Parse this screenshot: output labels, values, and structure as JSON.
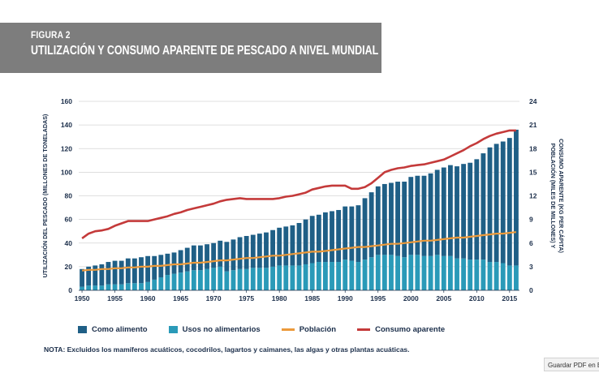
{
  "figure": {
    "number": "FIGURA 2",
    "title": "UTILIZACIÓN Y CONSUMO APARENTE DE PESCADO A NIVEL MUNDIAL"
  },
  "chart_data": {
    "type": "bar",
    "stacked": true,
    "x": [
      1950,
      1951,
      1952,
      1953,
      1954,
      1955,
      1956,
      1957,
      1958,
      1959,
      1960,
      1961,
      1962,
      1963,
      1964,
      1965,
      1966,
      1967,
      1968,
      1969,
      1970,
      1971,
      1972,
      1973,
      1974,
      1975,
      1976,
      1977,
      1978,
      1979,
      1980,
      1981,
      1982,
      1983,
      1984,
      1985,
      1986,
      1987,
      1988,
      1989,
      1990,
      1991,
      1992,
      1993,
      1994,
      1995,
      1996,
      1997,
      1998,
      1999,
      2000,
      2001,
      2002,
      2003,
      2004,
      2005,
      2006,
      2007,
      2008,
      2009,
      2010,
      2011,
      2012,
      2013,
      2014,
      2015,
      2016
    ],
    "series": [
      {
        "name": "Como alimento",
        "color": "#1f5f86",
        "axis": "left",
        "kind": "bar",
        "values": [
          15,
          16,
          17,
          18,
          19,
          20,
          20,
          21,
          21,
          22,
          22,
          20,
          19,
          18,
          18,
          19,
          20,
          21,
          21,
          21,
          21,
          22,
          25,
          26,
          27,
          28,
          28,
          29,
          30,
          31,
          32,
          33,
          34,
          36,
          38,
          40,
          40,
          42,
          43,
          44,
          45,
          46,
          48,
          52,
          55,
          58,
          60,
          61,
          63,
          64,
          66,
          67,
          68,
          70,
          72,
          75,
          77,
          78,
          80,
          82,
          85,
          90,
          97,
          100,
          103,
          108,
          115
        ]
      },
      {
        "name": "Usos no alimentarios",
        "color": "#2a9ab8",
        "axis": "left",
        "kind": "bar",
        "values": [
          3,
          4,
          4,
          4,
          5,
          5,
          5,
          6,
          6,
          6,
          7,
          9,
          11,
          13,
          14,
          15,
          16,
          17,
          17,
          18,
          19,
          20,
          16,
          17,
          18,
          18,
          19,
          19,
          19,
          20,
          21,
          21,
          21,
          21,
          22,
          23,
          24,
          24,
          24,
          24,
          26,
          25,
          24,
          26,
          28,
          30,
          30,
          30,
          29,
          28,
          30,
          30,
          29,
          29,
          30,
          29,
          29,
          27,
          27,
          26,
          26,
          26,
          24,
          24,
          23,
          21,
          21
        ]
      },
      {
        "name": "Población",
        "color": "#ec9a3b",
        "axis": "right",
        "kind": "line",
        "values": [
          2.5,
          2.6,
          2.6,
          2.7,
          2.7,
          2.8,
          2.8,
          2.9,
          2.9,
          3.0,
          3.0,
          3.1,
          3.1,
          3.2,
          3.3,
          3.3,
          3.4,
          3.5,
          3.5,
          3.6,
          3.7,
          3.8,
          3.8,
          3.9,
          4.0,
          4.1,
          4.1,
          4.2,
          4.3,
          4.4,
          4.4,
          4.5,
          4.6,
          4.7,
          4.8,
          4.9,
          4.9,
          5.0,
          5.1,
          5.2,
          5.3,
          5.4,
          5.5,
          5.5,
          5.6,
          5.7,
          5.8,
          5.9,
          5.9,
          6.0,
          6.1,
          6.2,
          6.3,
          6.3,
          6.4,
          6.5,
          6.6,
          6.7,
          6.7,
          6.8,
          6.9,
          7.0,
          7.1,
          7.2,
          7.2,
          7.3,
          7.4
        ]
      },
      {
        "name": "Consumo aparente",
        "color": "#c43a3a",
        "axis": "right",
        "kind": "line",
        "values": [
          6.6,
          7.2,
          7.5,
          7.6,
          7.8,
          8.2,
          8.5,
          8.8,
          8.8,
          8.8,
          8.8,
          9.0,
          9.2,
          9.4,
          9.7,
          9.9,
          10.2,
          10.4,
          10.6,
          10.8,
          11.0,
          11.3,
          11.5,
          11.6,
          11.7,
          11.6,
          11.6,
          11.6,
          11.6,
          11.6,
          11.7,
          11.9,
          12.0,
          12.2,
          12.4,
          12.8,
          13.0,
          13.2,
          13.3,
          13.3,
          13.3,
          12.9,
          12.9,
          13.1,
          13.6,
          14.3,
          15.0,
          15.3,
          15.5,
          15.6,
          15.8,
          15.9,
          16.0,
          16.2,
          16.4,
          16.6,
          17.0,
          17.4,
          17.8,
          18.3,
          18.7,
          19.2,
          19.6,
          19.9,
          20.1,
          20.3,
          20.3
        ]
      }
    ],
    "y_left": {
      "range": [
        0,
        160
      ],
      "ticks": [
        "0",
        "20",
        "40",
        "60",
        "80",
        "100",
        "120",
        "140",
        "160"
      ],
      "label": "UTILIZACIÓN DEL PESCADO (MILLONES DE TONELADAS)"
    },
    "y_right": {
      "range": [
        0,
        24
      ],
      "ticks": [
        "0",
        "3",
        "6",
        "9",
        "12",
        "15",
        "18",
        "21",
        "24"
      ],
      "label_line1": "POBLACIÓN (MILES DE MILLONES) Y",
      "label_line2": "CONSUMO APARENTE (KG PER CÁPITA)"
    },
    "x_ticks": [
      "1950",
      "1955",
      "1960",
      "1965",
      "1970",
      "1975",
      "1980",
      "1985",
      "1990",
      "1995",
      "2000",
      "2005",
      "2010",
      "2015"
    ],
    "grid": true
  },
  "legend": {
    "items": [
      {
        "label": "Como alimento",
        "color": "#1f5f86",
        "kind": "box"
      },
      {
        "label": "Usos no alimentarios",
        "color": "#2a9ab8",
        "kind": "box"
      },
      {
        "label": "Población",
        "color": "#ec9a3b",
        "kind": "line"
      },
      {
        "label": "Consumo aparente",
        "color": "#c43a3a",
        "kind": "line"
      }
    ]
  },
  "note": "NOTA: Excluidos los mamíferos acuáticos, cocodrilos, lagartos y caimanes, las algas y otras plantas acuáticas.",
  "pdf_button": "Guardar PDF en Eve"
}
